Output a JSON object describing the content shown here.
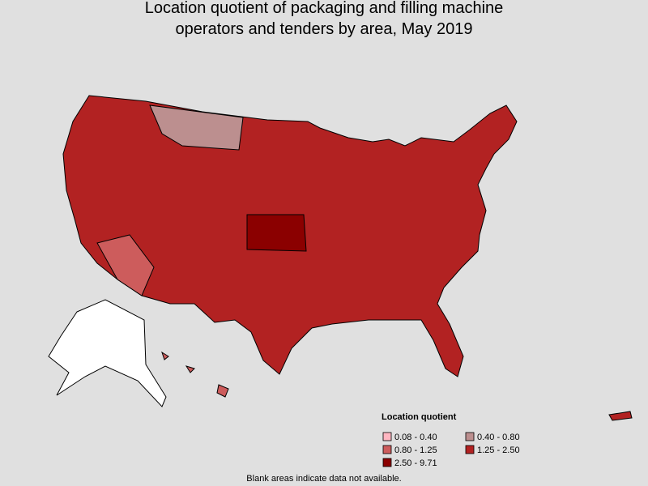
{
  "title": [
    "Location quotient of packaging and filling machine",
    "operators and tenders by area, May 2019"
  ],
  "legend": {
    "title": "Location quotient",
    "items": [
      {
        "label": "0.08 - 0.40",
        "color": "#ffb6c1"
      },
      {
        "label": "0.40 - 0.80",
        "color": "#bc8f8f"
      },
      {
        "label": "0.80 - 1.25",
        "color": "#cd5c5c"
      },
      {
        "label": "1.25 - 2.50",
        "color": "#b22222"
      },
      {
        "label": "2.50 - 9.71",
        "color": "#8b0000"
      }
    ]
  },
  "footnote": "Blank areas indicate data not available."
}
